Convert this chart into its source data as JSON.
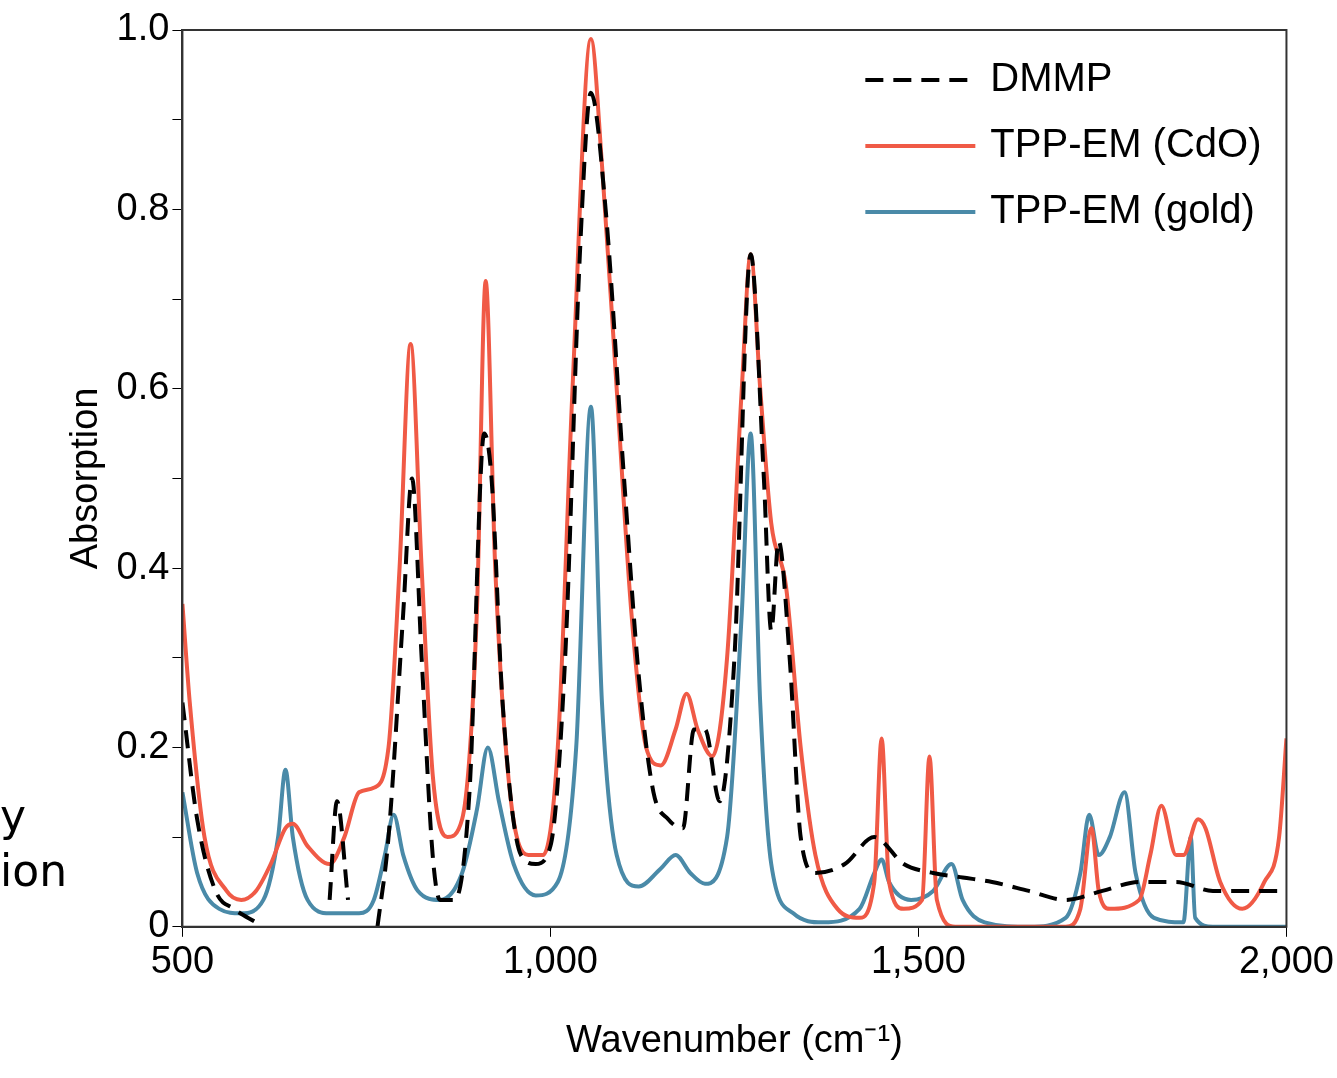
{
  "chart_data": {
    "type": "line",
    "xlabel": "Wavenumber (cm⁻¹)",
    "ylabel": "Absorption",
    "xlim": [
      500,
      2000
    ],
    "xticks": [
      {
        "value": 500,
        "label": "500"
      },
      {
        "value": 1000,
        "label": "1,000"
      },
      {
        "value": 1500,
        "label": "1,500"
      },
      {
        "value": 2000,
        "label": "2,000"
      }
    ],
    "ylim": [
      0,
      1
    ],
    "yticks": [
      {
        "value": 0,
        "label": "0"
      },
      {
        "value": 0.1,
        "label": null
      },
      {
        "value": 0.2,
        "label": "0.2"
      },
      {
        "value": 0.3,
        "label": null
      },
      {
        "value": 0.4,
        "label": "0.4"
      },
      {
        "value": 0.5,
        "label": null
      },
      {
        "value": 0.6,
        "label": "0.6"
      },
      {
        "value": 0.7,
        "label": null
      },
      {
        "value": 0.8,
        "label": "0.8"
      },
      {
        "value": 0.9,
        "label": null
      },
      {
        "value": 1.0,
        "label": "1.0"
      }
    ],
    "grid": false,
    "legend": "top right",
    "marker": "none",
    "annotations": [
      "y",
      "ion"
    ],
    "series": [
      {
        "name": "DMMP",
        "color": "#000000",
        "line_style": "dashed",
        "x": [
          500,
          520,
          545,
          570,
          600,
          620,
          690,
          700,
          710,
          725,
          740,
          765,
          780,
          800,
          812,
          825,
          840,
          850,
          870,
          890,
          910,
          920,
          935,
          960,
          980,
          1000,
          1020,
          1040,
          1055,
          1075,
          1100,
          1120,
          1140,
          1160,
          1180,
          1195,
          1210,
          1230,
          1250,
          1272,
          1290,
          1300,
          1310,
          1325,
          1340,
          1360,
          1400,
          1440,
          1480,
          1520,
          1560,
          1600,
          1650,
          1700,
          1750,
          1800,
          1850,
          1900,
          2000
        ],
        "values": [
          0.25,
          0.12,
          0.04,
          0.02,
          0.005,
          null,
          null,
          0.03,
          0.14,
          0.03,
          null,
          0,
          0.1,
          0.35,
          0.5,
          0.3,
          0.08,
          0.03,
          0.03,
          0.15,
          0.55,
          0.5,
          0.25,
          0.08,
          0.07,
          0.09,
          0.3,
          0.75,
          0.93,
          0.8,
          0.5,
          0.28,
          0.15,
          0.12,
          0.11,
          0.22,
          0.22,
          0.14,
          0.3,
          0.75,
          0.5,
          0.33,
          0.43,
          0.3,
          0.1,
          0.06,
          0.07,
          0.1,
          0.07,
          0.06,
          0.055,
          0.05,
          0.04,
          0.03,
          0.04,
          0.05,
          0.05,
          0.04,
          0.04
        ]
      },
      {
        "name": "TPP-EM (CdO)",
        "color": "#f05a46",
        "line_style": "solid",
        "x": [
          500,
          510,
          530,
          560,
          580,
          600,
          620,
          640,
          650,
          670,
          700,
          720,
          740,
          760,
          780,
          795,
          810,
          825,
          840,
          860,
          880,
          900,
          912,
          925,
          945,
          970,
          990,
          1010,
          1030,
          1055,
          1070,
          1090,
          1110,
          1130,
          1150,
          1170,
          1185,
          1200,
          1220,
          1240,
          1260,
          1272,
          1285,
          1300,
          1320,
          1340,
          1360,
          1390,
          1420,
          1440,
          1450,
          1460,
          1480,
          1505,
          1515,
          1525,
          1550,
          1700,
          1720,
          1735,
          1745,
          1760,
          1800,
          1815,
          1830,
          1850,
          1860,
          1880,
          1890,
          1910,
          1940,
          1970,
          1990,
          2000
        ],
        "values": [
          0.36,
          0.25,
          0.1,
          0.04,
          0.03,
          0.04,
          0.07,
          0.11,
          0.115,
          0.09,
          0.07,
          0.1,
          0.15,
          0.155,
          0.2,
          0.4,
          0.65,
          0.4,
          0.17,
          0.1,
          0.12,
          0.35,
          0.72,
          0.4,
          0.15,
          0.08,
          0.08,
          0.2,
          0.6,
          0.99,
          0.85,
          0.6,
          0.35,
          0.2,
          0.18,
          0.22,
          0.26,
          0.22,
          0.19,
          0.3,
          0.6,
          0.75,
          0.6,
          0.45,
          0.38,
          0.2,
          0.08,
          0.02,
          0.01,
          0.05,
          0.21,
          0.05,
          0.02,
          0.03,
          0.19,
          0.03,
          0,
          0,
          0.02,
          0.11,
          0.04,
          0.02,
          0.03,
          0.08,
          0.135,
          0.08,
          0.08,
          0.12,
          0.11,
          0.05,
          0.02,
          0.05,
          0.1,
          0.21
        ]
      },
      {
        "name": "TPP-EM (gold)",
        "color": "#4a8aa8",
        "line_style": "solid",
        "x": [
          500,
          520,
          550,
          580,
          610,
          630,
          640,
          650,
          670,
          700,
          740,
          760,
          775,
          787,
          800,
          820,
          850,
          880,
          900,
          915,
          930,
          950,
          980,
          1010,
          1035,
          1055,
          1070,
          1090,
          1120,
          1150,
          1170,
          1190,
          1210,
          1240,
          1260,
          1272,
          1285,
          1300,
          1330,
          1370,
          1420,
          1440,
          1450,
          1460,
          1490,
          1520,
          1545,
          1560,
          1590,
          1650,
          1700,
          1720,
          1732,
          1745,
          1760,
          1780,
          1795,
          1820,
          1860,
          1870,
          1876,
          1900,
          2000
        ],
        "values": [
          0.15,
          0.06,
          0.02,
          0.015,
          0.03,
          0.1,
          0.175,
          0.1,
          0.03,
          0.015,
          0.015,
          0.03,
          0.08,
          0.125,
          0.08,
          0.04,
          0.03,
          0.06,
          0.13,
          0.2,
          0.14,
          0.07,
          0.035,
          0.05,
          0.2,
          0.58,
          0.25,
          0.08,
          0.045,
          0.065,
          0.08,
          0.06,
          0.048,
          0.1,
          0.35,
          0.55,
          0.25,
          0.07,
          0.015,
          0.005,
          0.02,
          0.06,
          0.075,
          0.05,
          0.03,
          0.04,
          0.07,
          0.03,
          0.005,
          0,
          0.01,
          0.06,
          0.125,
          0.08,
          0.1,
          0.15,
          0.06,
          0.01,
          0.005,
          0.1,
          0.01,
          0,
          0
        ]
      }
    ]
  }
}
